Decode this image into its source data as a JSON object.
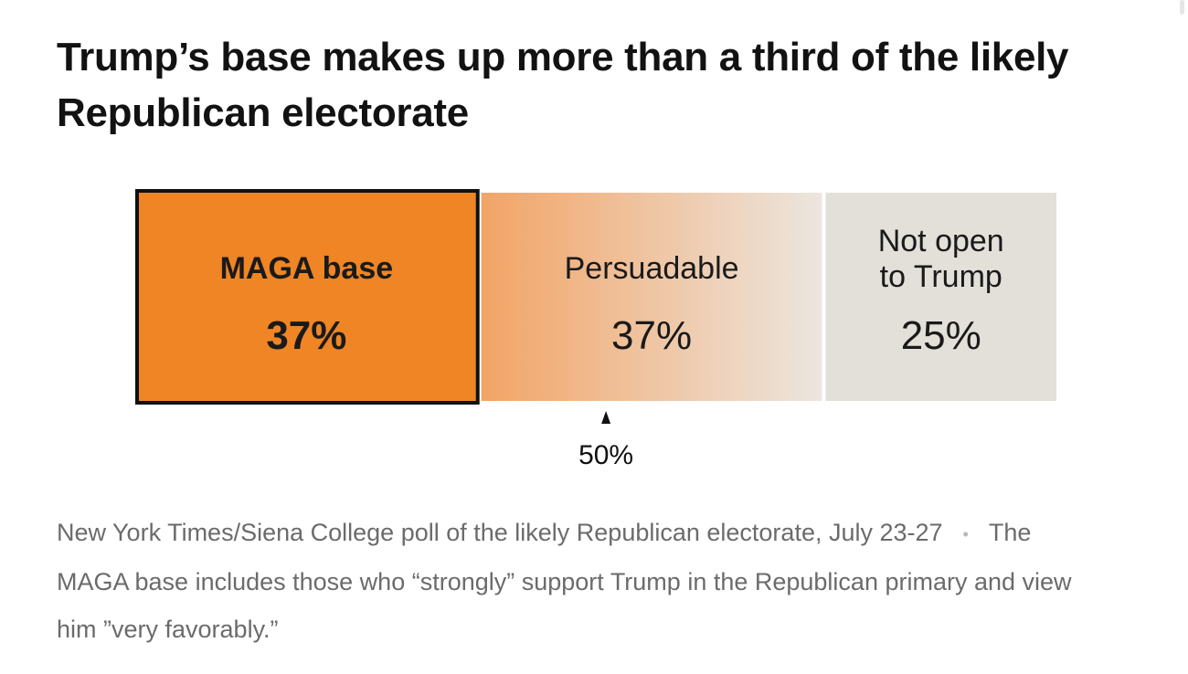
{
  "title": "Trump’s base makes up more than a third of the likely Republican electorate",
  "caption": {
    "source": "New York Times/Siena College poll of the likely Republican electorate, July 23-27",
    "note": "The MAGA base includes those who “strongly” support Trump in the Republican primary and view him ”very favorably.”"
  },
  "chart_data": {
    "type": "bar",
    "orientation": "horizontal-stacked",
    "segments": [
      {
        "label": "MAGA base",
        "value_label": "37%",
        "value": 37,
        "color": "#ef8525",
        "emphasis": true
      },
      {
        "label": "Persuadable",
        "value_label": "37%",
        "value": 37,
        "color_start": "#f2a466",
        "color_end": "#ece6df",
        "emphasis": false
      },
      {
        "label": "Not open to Trump",
        "label_lines": [
          "Not open",
          "to Trump"
        ],
        "value_label": "25%",
        "value": 25,
        "color": "#e3dfd9",
        "emphasis": false
      }
    ],
    "marker": {
      "value": 50,
      "label": "50%"
    },
    "xlim": [
      0,
      99
    ]
  }
}
